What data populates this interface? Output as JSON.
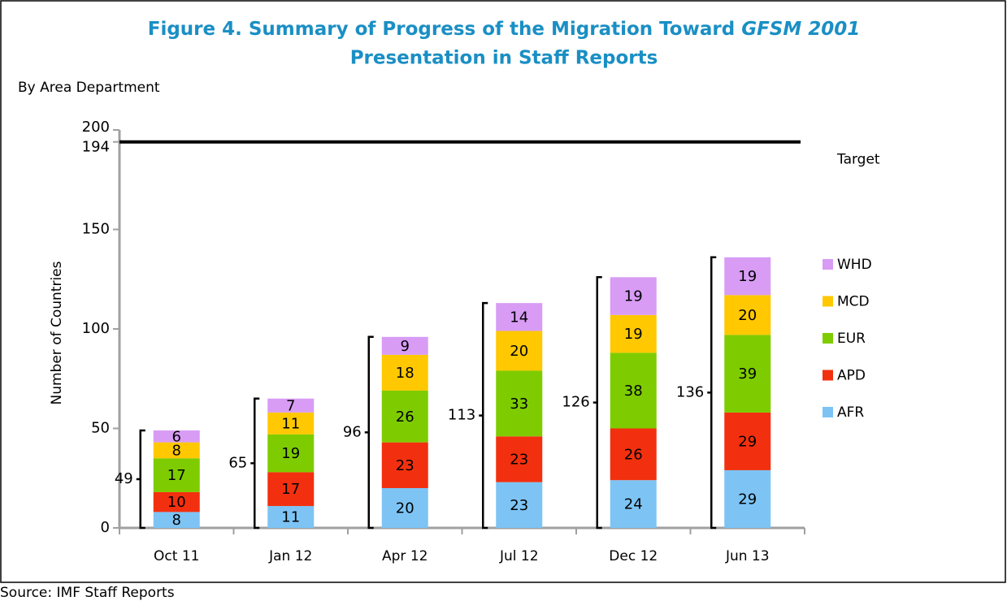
{
  "chart_data": {
    "type": "bar",
    "title": [
      "Figure 4. Summary of Progress of the Migration Toward ",
      "GFSM 2001",
      "Presentation in Staff Reports"
    ],
    "subtitle": "By Area Department",
    "y_label": "Number of Countries",
    "source": "Source: IMF Staff Reports",
    "categories": [
      "Oct 11",
      "Jan 12",
      "Apr 12",
      "Jul 12",
      "Dec 12",
      "Jun 13"
    ],
    "series": [
      {
        "name": "AFR",
        "color": "#7dc4f5",
        "values": [
          8,
          11,
          20,
          23,
          24,
          29
        ]
      },
      {
        "name": "APD",
        "color": "#f2300f",
        "values": [
          10,
          17,
          23,
          23,
          26,
          29
        ]
      },
      {
        "name": "EUR",
        "color": "#7ecc00",
        "values": [
          17,
          19,
          26,
          33,
          38,
          39
        ]
      },
      {
        "name": "MCD",
        "color": "#ffc800",
        "values": [
          8,
          11,
          18,
          20,
          19,
          20
        ]
      },
      {
        "name": "WHD",
        "color": "#d89cf5",
        "values": [
          6,
          7,
          9,
          14,
          19,
          19
        ]
      }
    ],
    "totals": [
      49,
      65,
      96,
      113,
      126,
      136
    ],
    "target": {
      "value": 194,
      "label": "Target"
    },
    "ylim": [
      0,
      200
    ],
    "yticks": [
      0,
      50,
      100,
      150,
      194,
      200
    ],
    "stacked": true,
    "legend": "right"
  }
}
